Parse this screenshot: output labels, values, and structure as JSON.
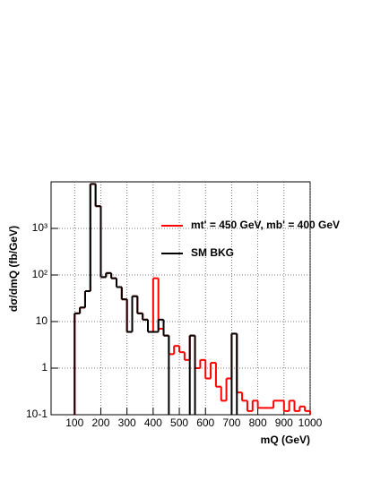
{
  "chart_data": {
    "type": "histogram",
    "y_label": "dσ/dmQ (fb/GeV)",
    "x_label": "mQ (GeV)",
    "bins": [
      100,
      120,
      140,
      160,
      180,
      200,
      220,
      240,
      260,
      280,
      300,
      320,
      340,
      360,
      380,
      400,
      420,
      440,
      460,
      480,
      500,
      520,
      540,
      560,
      580,
      600,
      620,
      640,
      660,
      680,
      700,
      720,
      740,
      760,
      780,
      800,
      820,
      840,
      860,
      880,
      900,
      920,
      940,
      960,
      980,
      1000
    ],
    "series": [
      {
        "name": "mt' = 450 GeV, mb' = 400 GeV",
        "color": "#ff0000",
        "values": [
          15,
          20,
          45,
          9000,
          3000,
          90,
          110,
          85,
          55,
          30,
          6,
          35,
          15,
          11,
          6,
          85,
          7,
          5,
          2,
          3,
          2.2,
          1.5,
          5,
          1,
          1.5,
          0.6,
          1.3,
          0.4,
          0.2,
          0.6,
          5.5,
          0.3,
          0.2,
          0.12,
          0.2,
          0.14,
          0.14,
          0.14,
          0.2,
          0.2,
          0.12,
          0.2,
          0.12,
          0.15,
          0.12
        ]
      },
      {
        "name": "SM BKG",
        "color": "#000000",
        "values": [
          15,
          20,
          45,
          9000,
          3000,
          90,
          110,
          85,
          55,
          30,
          6,
          35,
          15,
          11,
          6,
          6,
          11,
          5,
          null,
          null,
          null,
          null,
          5,
          null,
          null,
          null,
          null,
          null,
          null,
          null,
          5.5,
          null,
          null,
          null,
          null,
          null,
          null,
          null,
          null,
          null,
          null,
          null,
          null,
          null,
          null
        ]
      }
    ],
    "xlim": [
      10,
      1000
    ],
    "xticks": [
      100,
      200,
      300,
      400,
      500,
      600,
      700,
      800,
      900,
      1000
    ],
    "ylim": [
      0.1,
      10000
    ],
    "log_y": true,
    "yticks": [
      {
        "value": 0.1,
        "label": "10-1"
      },
      1,
      10,
      {
        "value": 100,
        "label": "10²"
      },
      {
        "value": 1000,
        "label": "10³"
      }
    ],
    "grid": true
  }
}
